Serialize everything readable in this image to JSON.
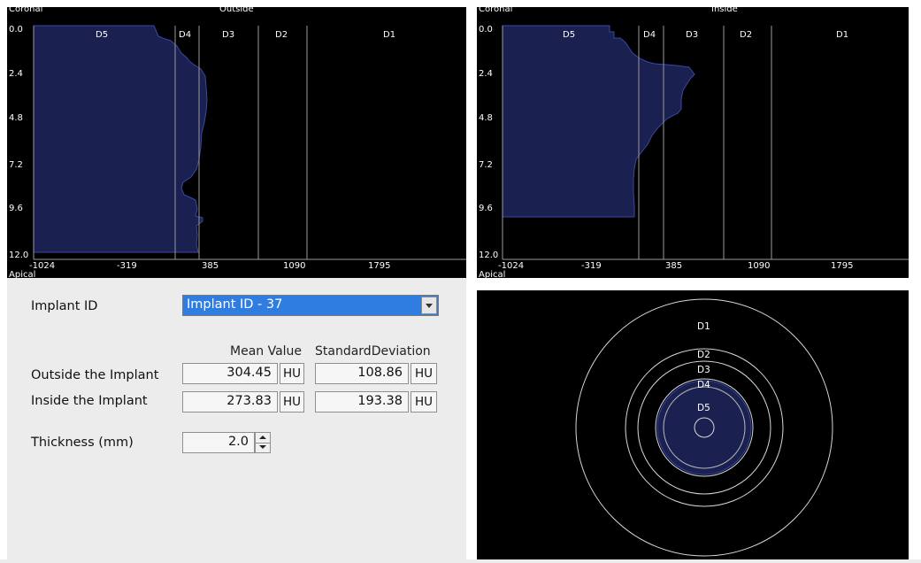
{
  "charts": {
    "outside": {
      "title": "Outside",
      "top_label": "Coronal",
      "bottom_label": "Apical",
      "zones": [
        "D5",
        "D4",
        "D3",
        "D2",
        "D1"
      ],
      "y_ticks": [
        "0.0",
        "2.4",
        "4.8",
        "7.2",
        "9.6",
        "12.0"
      ],
      "x_ticks": [
        "-1024",
        "-319",
        "385",
        "1090",
        "1795"
      ]
    },
    "inside": {
      "title": "Inside",
      "top_label": "Coronal",
      "bottom_label": "Apical",
      "zones": [
        "D5",
        "D4",
        "D3",
        "D2",
        "D1"
      ],
      "y_ticks": [
        "0.0",
        "2.4",
        "4.8",
        "7.2",
        "9.6",
        "12.0"
      ],
      "x_ticks": [
        "-1024",
        "-319",
        "385",
        "1090",
        "1795"
      ]
    }
  },
  "form": {
    "implant_label": "Implant ID",
    "implant_value": "Implant ID -  37",
    "col_mean": "Mean Value",
    "col_sd": "StandardDeviation",
    "rows": [
      {
        "label": "Outside the Implant",
        "mean": "304.45",
        "mean_unit": "HU",
        "sd": "108.86",
        "sd_unit": "HU"
      },
      {
        "label": "Inside the Implant",
        "mean": "273.83",
        "mean_unit": "HU",
        "sd": "193.38",
        "sd_unit": "HU"
      }
    ],
    "thickness_label": "Thickness (mm)",
    "thickness_value": "2.0"
  },
  "rings": {
    "labels": [
      "D1",
      "D2",
      "D3",
      "D4",
      "D5"
    ]
  },
  "colors": {
    "fill": "#1a2050",
    "outline": "#3848a8",
    "gridline": "#9a9a9a",
    "selection": "#2f7de1"
  }
}
